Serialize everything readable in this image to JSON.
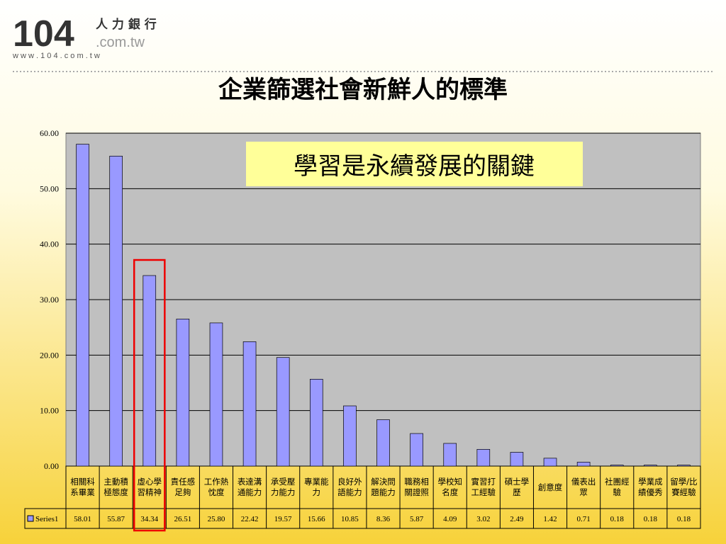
{
  "logo": {
    "number": "104",
    "name": "人 力 銀 行",
    "domain": ".com.tw",
    "url": "w w w . 1 0 4 . c o m . t w"
  },
  "chart_data": {
    "type": "bar",
    "title": "企業篩選社會新鮮人的標準",
    "annotation": "學習是永續發展的關鍵",
    "categories": [
      "相關科系畢業",
      "主動積極態度",
      "虛心學習精神",
      "責任感足夠",
      "工作熱忱度",
      "表達溝通能力",
      "承受壓力能力",
      "專業能力",
      "良好外語能力",
      "解決問題能力",
      "職務相關證照",
      "學校知名度",
      "實習打工經驗",
      "碩士學歷",
      "創意度",
      "儀表出眾",
      "社團經驗",
      "學業成績優秀",
      "留學/比賽經驗"
    ],
    "series": [
      {
        "name": "Series1",
        "color": "#9999ff",
        "values": [
          58.01,
          55.87,
          34.34,
          26.51,
          25.8,
          22.42,
          19.57,
          15.66,
          10.85,
          8.36,
          5.87,
          4.09,
          3.02,
          2.49,
          1.42,
          0.71,
          0.18,
          0.18,
          0.18
        ],
        "value_labels": [
          "58.01",
          "55.87",
          "34.34",
          "26.51",
          "25.80",
          "22.42",
          "19.57",
          "15.66",
          "10.85",
          "8.36",
          "5.87",
          "4.09",
          "3.02",
          "2.49",
          "1.42",
          "0.71",
          "0.18",
          "0.18",
          "0.18"
        ]
      }
    ],
    "ylim": [
      0,
      60
    ],
    "yticks": [
      {
        "value": 0,
        "label": "0.00"
      },
      {
        "value": 10,
        "label": "10.00"
      },
      {
        "value": 20,
        "label": "20.00"
      },
      {
        "value": 30,
        "label": "30.00"
      },
      {
        "value": 40,
        "label": "40.00"
      },
      {
        "value": 50,
        "label": "50.00"
      },
      {
        "value": 60,
        "label": "60.00"
      }
    ],
    "grid": true
  }
}
